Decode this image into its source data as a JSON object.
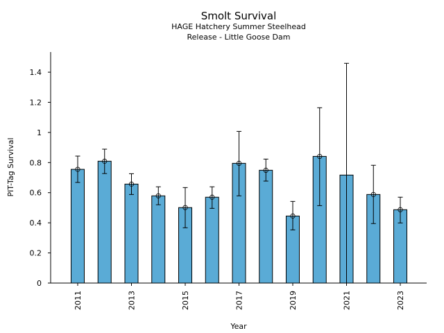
{
  "chart_data": {
    "type": "bar",
    "title": "Smolt Survival",
    "subtitle_lines": [
      "HAGE Hatchery Summer Steelhead",
      "Release - Little Goose Dam"
    ],
    "xlabel": "Year",
    "ylabel": "PIT-Tag Survival",
    "ylim": [
      0,
      1.5
    ],
    "yticks": [
      0,
      0.2,
      0.4,
      0.6,
      0.8,
      1,
      1.2,
      1.4
    ],
    "ytick_labels": [
      "0",
      "0.2",
      "0.4",
      "0.6",
      "0.8",
      "1",
      "1.2",
      "1.4"
    ],
    "xtick_labels": [
      "2011",
      "2013",
      "2015",
      "2017",
      "2019",
      "2021",
      "2023"
    ],
    "grid": false,
    "bar_color": "#5aabd6",
    "categories": [
      "2011",
      "2012",
      "2013",
      "2014",
      "2015",
      "2016",
      "2017",
      "2018",
      "2019",
      "2020",
      "2021",
      "2022",
      "2023"
    ],
    "series": [
      {
        "name": "PIT-Tag Survival",
        "values": [
          0.755,
          0.809,
          0.657,
          0.579,
          0.501,
          0.57,
          0.795,
          0.749,
          0.445,
          0.841,
          0.717,
          0.588,
          0.487
        ],
        "error_upper": [
          0.843,
          0.889,
          0.726,
          0.639,
          0.634,
          0.639,
          1.007,
          0.823,
          0.542,
          1.164,
          1.459,
          0.782,
          0.57
        ],
        "error_lower": [
          0.668,
          0.727,
          0.588,
          0.52,
          0.367,
          0.496,
          0.579,
          0.677,
          0.353,
          0.514,
          0.0,
          0.395,
          0.399
        ],
        "has_marker": [
          true,
          true,
          true,
          true,
          true,
          true,
          true,
          true,
          true,
          true,
          false,
          true,
          true
        ]
      }
    ]
  }
}
